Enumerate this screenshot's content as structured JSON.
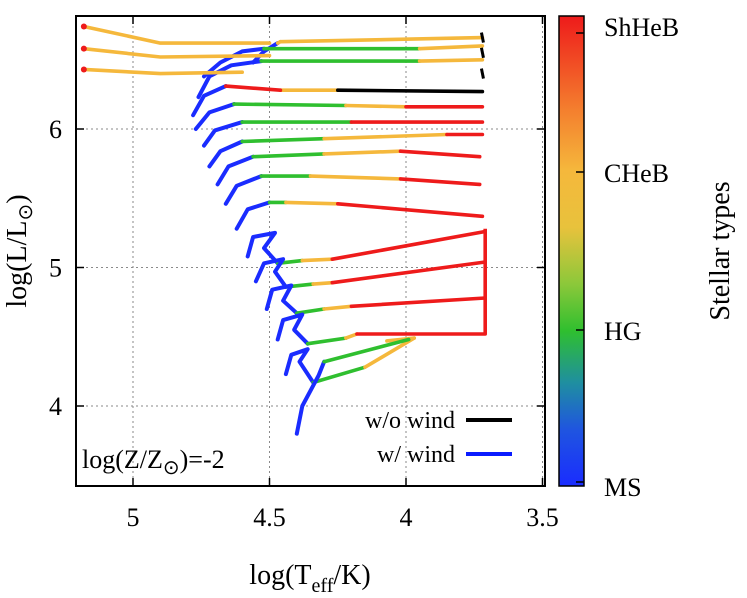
{
  "chart_data": {
    "type": "line",
    "xlabel_main": "log(T",
    "xlabel_sub": "eff",
    "xlabel_end": "/K)",
    "ylabel_main": "log(L/L",
    "ylabel_sym": "⊙",
    "ylabel_end": ")",
    "annotation_main": "log(Z/Z",
    "annotation_sym": "⊙",
    "annotation_end": ")=-2",
    "xlim": [
      5.2,
      3.4
    ],
    "ylim": [
      3.45,
      6.85
    ],
    "x_reversed": true,
    "xticks": [
      5,
      4.5,
      4,
      3.5
    ],
    "xtick_labels": [
      "5",
      "4.5",
      "4",
      "3.5"
    ],
    "yticks": [
      4,
      5,
      6
    ],
    "ytick_labels": [
      "4",
      "5",
      "6"
    ],
    "grid": true,
    "colorbar_title": "Stellar types",
    "colorbar_labels": [
      "ShHeB",
      "CHeB",
      "HG",
      "MS"
    ],
    "colors": {
      "MS": "#1a2cff",
      "HG": "#2fbf2f",
      "CHeB": "#f5b83c",
      "ShHeB": "#ee1b1b",
      "no_wind": "#000000",
      "wind": "#0a1cff",
      "grid": "#8a8a8a"
    },
    "legend": {
      "placement": "bottom-right",
      "entries": [
        {
          "label": "w/o wind",
          "color": "#000000"
        },
        {
          "label": "w/ wind",
          "color": "#0a1cff"
        }
      ]
    },
    "tracks": [
      {
        "ms": [
          [
            4.56,
            6.48
          ],
          [
            4.52,
            6.56
          ],
          [
            4.47,
            6.62
          ]
        ],
        "loop": [
          [
            4.47,
            6.62
          ],
          [
            4.46,
            6.63
          ]
        ],
        "cheb": [
          [
            4.46,
            6.63
          ],
          [
            3.72,
            6.66
          ]
        ],
        "black_end": [
          3.72,
          6.66
        ]
      },
      {
        "ms": [
          [
            4.74,
            6.38
          ],
          [
            4.68,
            6.48
          ],
          [
            4.6,
            6.56
          ],
          [
            4.52,
            6.58
          ]
        ],
        "hg": [
          [
            4.52,
            6.58
          ],
          [
            3.95,
            6.58
          ]
        ],
        "cheb": [
          [
            3.95,
            6.58
          ],
          [
            3.72,
            6.6
          ]
        ],
        "black_end": [
          3.72,
          6.55
        ]
      },
      {
        "ms": [
          [
            4.76,
            6.23
          ],
          [
            4.72,
            6.38
          ],
          [
            4.64,
            6.46
          ],
          [
            4.53,
            6.49
          ]
        ],
        "hg": [
          [
            4.53,
            6.49
          ],
          [
            3.95,
            6.49
          ]
        ],
        "cheb": [
          [
            3.95,
            6.49
          ],
          [
            3.72,
            6.5
          ]
        ],
        "black_end": [
          3.72,
          6.4
        ]
      },
      {
        "ms": [
          [
            4.78,
            6.1
          ],
          [
            4.74,
            6.24
          ],
          [
            4.66,
            6.31
          ]
        ],
        "shheb": [
          [
            4.66,
            6.31
          ],
          [
            4.46,
            6.28
          ]
        ],
        "cheb": [
          [
            4.46,
            6.28
          ],
          [
            4.25,
            6.28
          ]
        ],
        "black_seg": [
          [
            4.25,
            6.28
          ],
          [
            3.72,
            6.27
          ]
        ]
      },
      {
        "ms": [
          [
            4.77,
            6.0
          ],
          [
            4.72,
            6.12
          ],
          [
            4.63,
            6.18
          ]
        ],
        "hg": [
          [
            4.63,
            6.18
          ],
          [
            4.22,
            6.17
          ]
        ],
        "cheb": [
          [
            4.22,
            6.17
          ],
          [
            4.0,
            6.16
          ]
        ],
        "shheb": [
          [
            4.0,
            6.16
          ],
          [
            3.72,
            6.16
          ]
        ]
      },
      {
        "ms": [
          [
            4.74,
            5.88
          ],
          [
            4.7,
            5.99
          ],
          [
            4.6,
            6.05
          ]
        ],
        "hg": [
          [
            4.6,
            6.05
          ],
          [
            4.2,
            6.05
          ]
        ],
        "shheb": [
          [
            4.2,
            6.05
          ],
          [
            3.72,
            6.05
          ]
        ]
      },
      {
        "ms": [
          [
            4.72,
            5.73
          ],
          [
            4.68,
            5.84
          ],
          [
            4.6,
            5.91
          ]
        ],
        "hg": [
          [
            4.6,
            5.91
          ],
          [
            4.3,
            5.93
          ]
        ],
        "cheb": [
          [
            4.3,
            5.93
          ],
          [
            3.85,
            5.96
          ]
        ],
        "shheb": [
          [
            3.85,
            5.96
          ],
          [
            3.72,
            5.96
          ]
        ]
      },
      {
        "ms": [
          [
            4.69,
            5.6
          ],
          [
            4.65,
            5.73
          ],
          [
            4.56,
            5.8
          ]
        ],
        "hg": [
          [
            4.56,
            5.8
          ],
          [
            4.3,
            5.82
          ]
        ],
        "cheb": [
          [
            4.3,
            5.82
          ],
          [
            4.02,
            5.84
          ]
        ],
        "shheb": [
          [
            4.02,
            5.84
          ],
          [
            3.73,
            5.8
          ]
        ]
      },
      {
        "ms": [
          [
            4.66,
            5.46
          ],
          [
            4.62,
            5.59
          ],
          [
            4.53,
            5.66
          ]
        ],
        "hg": [
          [
            4.53,
            5.66
          ],
          [
            4.35,
            5.66
          ]
        ],
        "cheb": [
          [
            4.35,
            5.66
          ],
          [
            4.02,
            5.64
          ]
        ],
        "shheb": [
          [
            4.02,
            5.64
          ],
          [
            3.73,
            5.6
          ]
        ]
      },
      {
        "ms": [
          [
            4.62,
            5.28
          ],
          [
            4.58,
            5.42
          ],
          [
            4.5,
            5.47
          ]
        ],
        "hg": [
          [
            4.5,
            5.47
          ],
          [
            4.44,
            5.47
          ]
        ],
        "cheb": [
          [
            4.44,
            5.47
          ],
          [
            4.25,
            5.46
          ]
        ],
        "shheb": [
          [
            4.25,
            5.46
          ],
          [
            3.72,
            5.37
          ]
        ]
      },
      {
        "ms": [
          [
            4.58,
            5.08
          ],
          [
            4.56,
            5.22
          ],
          [
            4.48,
            5.25
          ],
          [
            4.52,
            5.14
          ],
          [
            4.47,
            5.03
          ]
        ],
        "hg": [
          [
            4.47,
            5.03
          ],
          [
            4.38,
            5.05
          ]
        ],
        "cheb": [
          [
            4.38,
            5.05
          ],
          [
            4.27,
            5.06
          ]
        ],
        "shheb": [
          [
            4.27,
            5.06
          ],
          [
            3.71,
            5.26
          ]
        ]
      },
      {
        "ms": [
          [
            4.55,
            4.9
          ],
          [
            4.52,
            5.03
          ],
          [
            4.45,
            5.06
          ],
          [
            4.48,
            4.97
          ],
          [
            4.44,
            4.86
          ]
        ],
        "hg": [
          [
            4.44,
            4.86
          ],
          [
            4.34,
            4.88
          ]
        ],
        "cheb": [
          [
            4.34,
            4.88
          ],
          [
            4.27,
            4.89
          ]
        ],
        "shheb": [
          [
            4.27,
            4.89
          ],
          [
            3.71,
            5.04
          ]
        ]
      },
      {
        "ms": [
          [
            4.51,
            4.7
          ],
          [
            4.49,
            4.84
          ],
          [
            4.42,
            4.87
          ],
          [
            4.45,
            4.76
          ],
          [
            4.4,
            4.67
          ]
        ],
        "hg": [
          [
            4.4,
            4.67
          ],
          [
            4.3,
            4.7
          ]
        ],
        "cheb": [
          [
            4.3,
            4.7
          ],
          [
            4.2,
            4.72
          ]
        ],
        "shheb": [
          [
            4.2,
            4.72
          ],
          [
            3.71,
            4.78
          ]
        ]
      },
      {
        "ms": [
          [
            4.47,
            4.48
          ],
          [
            4.45,
            4.62
          ],
          [
            4.38,
            4.66
          ],
          [
            4.41,
            4.55
          ],
          [
            4.36,
            4.45
          ]
        ],
        "hg": [
          [
            4.36,
            4.45
          ],
          [
            4.22,
            4.49
          ]
        ],
        "cheb": [
          [
            4.22,
            4.49
          ],
          [
            4.18,
            4.52
          ]
        ],
        "shheb": [
          [
            4.18,
            4.52
          ],
          [
            3.71,
            4.52
          ]
        ]
      },
      {
        "ms": [
          [
            4.44,
            4.23
          ],
          [
            4.42,
            4.37
          ],
          [
            4.36,
            4.41
          ],
          [
            4.39,
            4.32
          ],
          [
            4.34,
            4.17
          ]
        ],
        "hg": [
          [
            4.34,
            4.17
          ],
          [
            4.15,
            4.28
          ]
        ],
        "cheb": [
          [
            4.15,
            4.28
          ],
          [
            3.97,
            4.49
          ]
        ],
        "loop": [
          [
            3.97,
            4.49
          ],
          [
            4.07,
            4.47
          ]
        ]
      },
      {
        "ms": [
          [
            4.4,
            3.8
          ],
          [
            4.38,
            4.0
          ],
          [
            4.32,
            4.22
          ],
          [
            4.3,
            4.32
          ]
        ],
        "hg": [
          [
            4.3,
            4.32
          ],
          [
            3.99,
            4.48
          ]
        ]
      },
      {
        "cheb_topleft": [
          [
            5.18,
            6.74
          ],
          [
            4.9,
            6.62
          ],
          [
            4.5,
            6.62
          ]
        ]
      },
      {
        "cheb_topleft": [
          [
            5.18,
            6.58
          ],
          [
            4.9,
            6.52
          ],
          [
            4.5,
            6.53
          ]
        ]
      },
      {
        "cheb_topleft": [
          [
            5.18,
            6.43
          ],
          [
            4.9,
            6.4
          ],
          [
            4.6,
            6.41
          ]
        ]
      }
    ]
  }
}
